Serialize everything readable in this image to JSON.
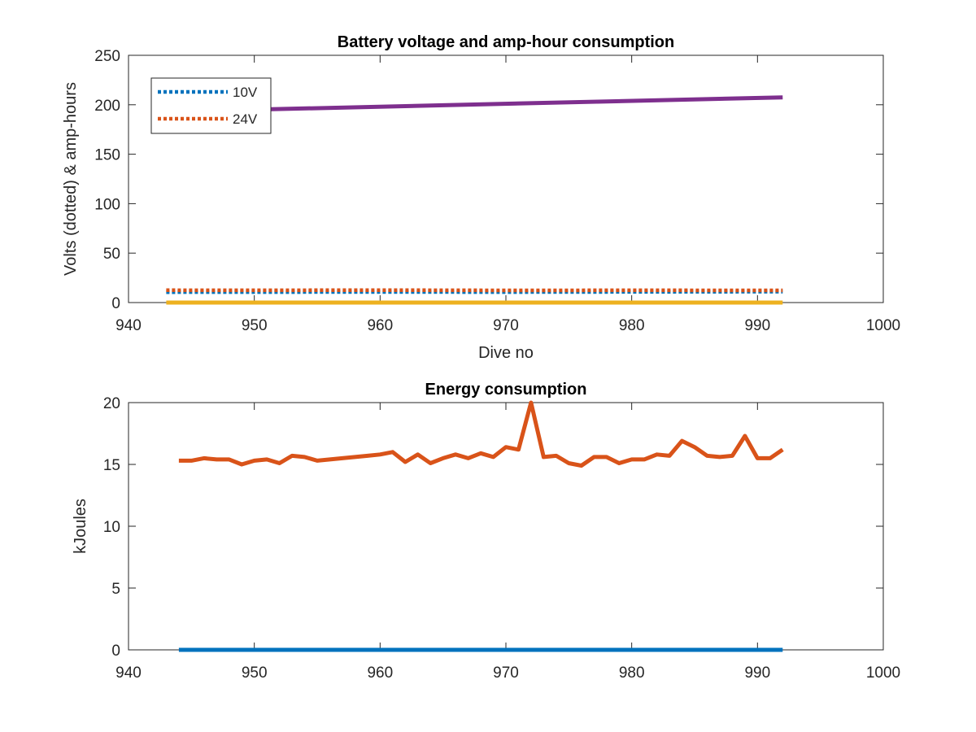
{
  "chart_data": [
    {
      "type": "line",
      "title": "Battery voltage and amp-hour consumption",
      "xlabel": "Dive no",
      "ylabel": "Volts (dotted) & amp-hours",
      "xlim": [
        940,
        1000
      ],
      "ylim": [
        0,
        250
      ],
      "xticks": [
        940,
        950,
        960,
        970,
        980,
        990,
        1000
      ],
      "yticks": [
        0,
        50,
        100,
        150,
        200,
        250
      ],
      "legend_position": "top-left",
      "grid": false,
      "series": [
        {
          "name": "10V",
          "style": "dotted",
          "color": "#0072BD",
          "x": [
            943,
            950,
            960,
            970,
            980,
            992
          ],
          "y": [
            10.5,
            10.6,
            10.7,
            10.6,
            10.8,
            11
          ]
        },
        {
          "name": "24V",
          "style": "dotted",
          "color": "#D95319",
          "x": [
            943,
            950,
            960,
            970,
            980,
            992
          ],
          "y": [
            12.5,
            12.4,
            12.6,
            12.3,
            12.4,
            12.3
          ]
        },
        {
          "style": "solid",
          "color": "#7E2F8E",
          "x": [
            943,
            992
          ],
          "y": [
            193,
            207.5
          ]
        },
        {
          "style": "solid",
          "color": "#EDB120",
          "x": [
            943,
            992
          ],
          "y": [
            0,
            0
          ]
        }
      ]
    },
    {
      "type": "line",
      "title": "Energy consumption",
      "xlabel": "",
      "ylabel": "kJoules",
      "xlim": [
        940,
        1000
      ],
      "ylim": [
        0,
        20
      ],
      "xticks": [
        940,
        950,
        960,
        970,
        980,
        990,
        1000
      ],
      "yticks": [
        0,
        5,
        10,
        15,
        20
      ],
      "grid": false,
      "series": [
        {
          "style": "solid",
          "color": "#0072BD",
          "x": [
            944,
            992
          ],
          "y": [
            0,
            0
          ]
        },
        {
          "style": "solid",
          "color": "#D95319",
          "x": [
            944,
            945,
            946,
            947,
            948,
            949,
            950,
            951,
            952,
            953,
            954,
            955,
            956,
            957,
            958,
            959,
            960,
            961,
            962,
            963,
            964,
            965,
            966,
            967,
            968,
            969,
            970,
            971,
            972,
            973,
            974,
            975,
            976,
            977,
            978,
            979,
            980,
            981,
            982,
            983,
            984,
            985,
            986,
            987,
            988,
            989,
            990,
            991,
            992
          ],
          "y": [
            15.3,
            15.3,
            15.5,
            15.4,
            15.4,
            15.0,
            15.3,
            15.4,
            15.1,
            15.7,
            15.6,
            15.3,
            15.4,
            15.5,
            15.6,
            15.7,
            15.8,
            16.0,
            15.2,
            15.8,
            15.1,
            15.5,
            15.8,
            15.5,
            15.9,
            15.6,
            16.4,
            16.2,
            20.0,
            15.6,
            15.7,
            15.1,
            14.9,
            15.6,
            15.6,
            15.1,
            15.4,
            15.4,
            15.8,
            15.7,
            16.9,
            16.4,
            15.7,
            15.6,
            15.7,
            17.3,
            15.5,
            15.5,
            16.2
          ]
        }
      ]
    }
  ]
}
